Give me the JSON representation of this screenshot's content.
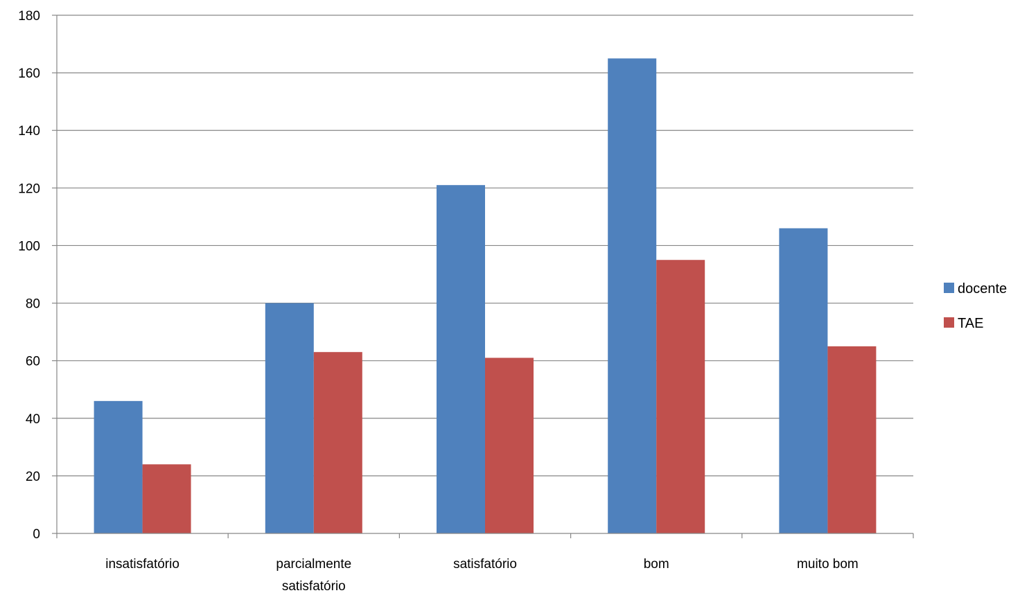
{
  "chart_data": {
    "type": "bar",
    "categories": [
      "insatisfatório",
      "parcialmente satisfatório",
      "satisfatório",
      "bom",
      "muito bom"
    ],
    "category_lines": [
      [
        "insatisfatório"
      ],
      [
        "parcialmente",
        "satisfatório"
      ],
      [
        "satisfatório"
      ],
      [
        "bom"
      ],
      [
        "muito bom"
      ]
    ],
    "series": [
      {
        "name": "docente",
        "color": "#4F81BD",
        "values": [
          46,
          80,
          121,
          165,
          106
        ]
      },
      {
        "name": "TAE",
        "color": "#C0504D",
        "values": [
          24,
          63,
          61,
          95,
          65
        ]
      }
    ],
    "ylim": [
      0,
      180
    ],
    "yticks": [
      0,
      20,
      40,
      60,
      80,
      100,
      120,
      140,
      160,
      180
    ],
    "grid": true,
    "legend_position": "right"
  }
}
